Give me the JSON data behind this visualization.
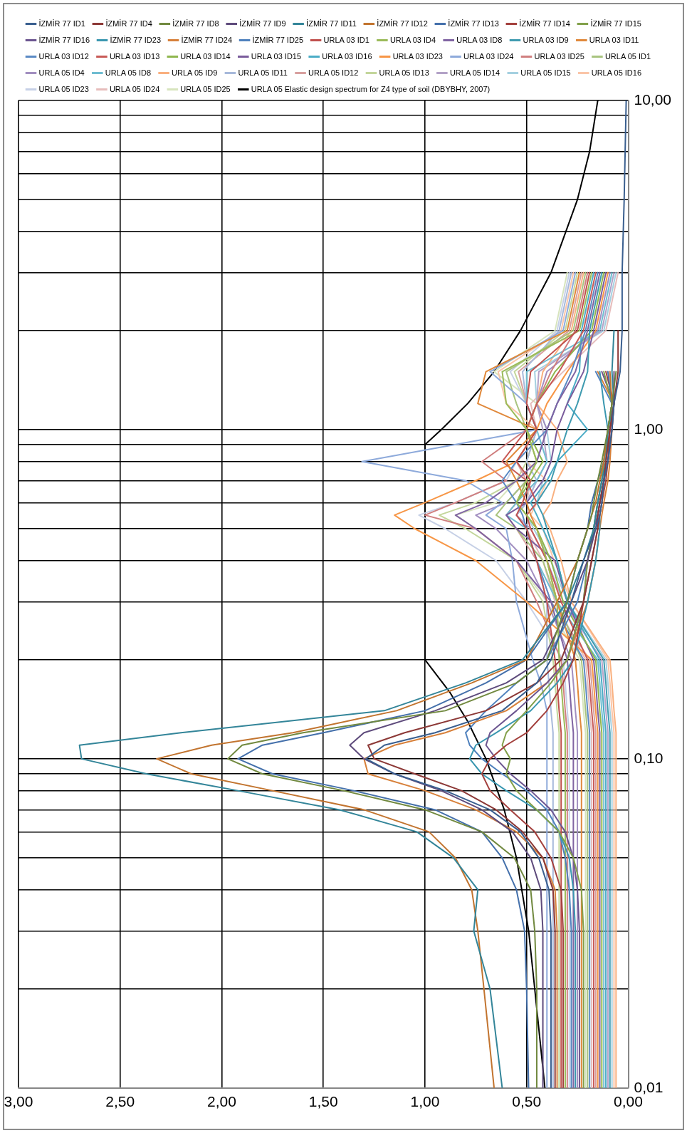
{
  "chart_data": {
    "type": "line",
    "orientation": "horizontal",
    "log": "y",
    "grid": true,
    "legend": "top",
    "marker": "none",
    "line_style": "solid",
    "x": [
      0.01,
      0.02,
      0.03,
      0.04,
      0.05,
      0.06,
      0.07,
      0.08,
      0.09,
      0.1,
      0.11,
      0.12,
      0.14,
      0.17,
      0.2,
      0.3,
      0.4,
      0.5,
      0.55,
      0.6,
      0.7,
      0.8,
      1,
      1.2,
      1.5,
      2,
      3,
      5,
      10
    ],
    "ylim": [
      0.01,
      10
    ],
    "yticks": [
      {
        "value": 0.01,
        "label": "0,01"
      },
      {
        "value": 0.02,
        "label": null
      },
      {
        "value": 0.03,
        "label": null
      },
      {
        "value": 0.04,
        "label": null
      },
      {
        "value": 0.05,
        "label": null
      },
      {
        "value": 0.06,
        "label": null
      },
      {
        "value": 0.07,
        "label": null
      },
      {
        "value": 0.08,
        "label": null
      },
      {
        "value": 0.09,
        "label": null
      },
      {
        "value": 0.1,
        "label": "0,10"
      },
      {
        "value": 0.2,
        "label": null
      },
      {
        "value": 0.3,
        "label": null
      },
      {
        "value": 0.4,
        "label": null
      },
      {
        "value": 0.5,
        "label": null
      },
      {
        "value": 0.6,
        "label": null
      },
      {
        "value": 0.7,
        "label": null
      },
      {
        "value": 0.8,
        "label": null
      },
      {
        "value": 0.9,
        "label": null
      },
      {
        "value": 1,
        "label": "1,00"
      },
      {
        "value": 2,
        "label": null
      },
      {
        "value": 3,
        "label": null
      },
      {
        "value": 4,
        "label": null
      },
      {
        "value": 5,
        "label": null
      },
      {
        "value": 6,
        "label": null
      },
      {
        "value": 7,
        "label": null
      },
      {
        "value": 8,
        "label": null
      },
      {
        "value": 9,
        "label": null
      },
      {
        "value": 10,
        "label": "10,00"
      }
    ],
    "xlim": [
      3,
      0
    ],
    "xticks": [
      {
        "value": 0,
        "label": "0,00"
      },
      {
        "value": 0.5,
        "label": "0,50"
      },
      {
        "value": 1,
        "label": "1,00"
      },
      {
        "value": 1.5,
        "label": "1,50"
      },
      {
        "value": 2,
        "label": "2,00"
      },
      {
        "value": 2.5,
        "label": "2,50"
      },
      {
        "value": 3,
        "label": "3,00"
      }
    ],
    "series": [
      {
        "name": "İZMİR 77 ID1",
        "color": "#3a5f8f",
        "values": [
          0.38,
          0.38,
          0.38,
          0.39,
          0.44,
          0.53,
          0.68,
          0.9,
          1.15,
          1.29,
          1.2,
          0.95,
          0.62,
          0.45,
          0.38,
          0.28,
          0.22,
          0.16,
          0.14,
          0.13,
          0.12,
          0.1,
          0.08,
          0.07,
          0.04,
          0.03,
          0.03,
          0.02,
          0.01
        ]
      },
      {
        "name": "İZMİR 77 ID4",
        "color": "#8c3836",
        "values": [
          0.36,
          0.36,
          0.36,
          0.37,
          0.42,
          0.52,
          0.65,
          0.82,
          1.05,
          1.25,
          1.28,
          1.1,
          0.7,
          0.45,
          0.33,
          0.22,
          0.18,
          0.15,
          0.15,
          0.14,
          0.12,
          0.11,
          0.09,
          0.07,
          0.05,
          0.05,
          null,
          null,
          null
        ]
      },
      {
        "name": "İZMİR 77 ID8",
        "color": "#71893f",
        "values": [
          0.45,
          0.45,
          0.46,
          0.48,
          0.56,
          0.72,
          1.0,
          1.4,
          1.8,
          1.97,
          1.9,
          1.6,
          0.9,
          0.55,
          0.4,
          0.3,
          0.25,
          0.2,
          0.18,
          0.17,
          0.15,
          0.13,
          0.1,
          0.08,
          0.06,
          null,
          null,
          null,
          null
        ]
      },
      {
        "name": "İZMİR 77 ID9",
        "color": "#5e4b7c",
        "values": [
          0.42,
          0.42,
          0.42,
          0.43,
          0.48,
          0.57,
          0.72,
          0.92,
          1.15,
          1.3,
          1.37,
          1.3,
          0.95,
          0.6,
          0.42,
          0.28,
          0.2,
          0.16,
          0.15,
          0.14,
          0.12,
          0.1,
          0.08,
          0.07,
          0.07,
          null,
          null,
          null,
          null
        ]
      },
      {
        "name": "İZMİR 77 ID11",
        "color": "#338599",
        "values": [
          0.62,
          0.68,
          0.76,
          0.74,
          0.86,
          1.04,
          1.42,
          1.92,
          2.37,
          2.69,
          2.7,
          2.2,
          1.2,
          0.8,
          0.52,
          0.3,
          0.22,
          0.17,
          0.16,
          0.15,
          0.13,
          0.11,
          0.1,
          0.07,
          0.08,
          0.07,
          null,
          null,
          null
        ]
      },
      {
        "name": "İZMİR 77 ID12",
        "color": "#c2742f",
        "values": [
          0.66,
          0.71,
          0.74,
          0.77,
          0.85,
          0.98,
          1.3,
          1.75,
          2.15,
          2.32,
          2.05,
          1.65,
          1.14,
          0.77,
          0.5,
          0.35,
          0.25,
          0.2,
          0.18,
          0.16,
          0.14,
          0.12,
          0.1,
          0.08,
          0.09,
          null,
          null,
          null,
          null
        ]
      },
      {
        "name": "İZMİR 77 ID13",
        "color": "#4470ab",
        "values": [
          0.49,
          0.5,
          0.51,
          0.55,
          0.62,
          0.72,
          0.95,
          1.35,
          1.75,
          1.92,
          1.8,
          1.5,
          1.0,
          0.7,
          0.5,
          0.3,
          0.25,
          0.2,
          0.19,
          0.18,
          0.15,
          0.12,
          0.1,
          0.08,
          0.1,
          null,
          null,
          null,
          null
        ]
      },
      {
        "name": "İZMİR 77 ID14",
        "color": "#a3403d",
        "values": [
          0.32,
          0.32,
          0.32,
          0.33,
          0.38,
          0.46,
          0.58,
          0.68,
          0.72,
          0.68,
          0.6,
          0.5,
          0.4,
          0.32,
          0.27,
          0.22,
          0.18,
          0.15,
          0.14,
          0.13,
          0.11,
          0.1,
          0.09,
          0.07,
          0.11,
          null,
          null,
          null,
          null
        ]
      },
      {
        "name": "İZMİR 77 ID15",
        "color": "#82a04a",
        "values": [
          0.22,
          0.22,
          0.22,
          0.23,
          0.27,
          0.34,
          0.45,
          0.55,
          0.6,
          0.58,
          0.62,
          0.6,
          0.5,
          0.38,
          0.3,
          0.22,
          0.2,
          0.17,
          0.16,
          0.15,
          0.13,
          0.12,
          0.1,
          0.08,
          0.12,
          null,
          null,
          null,
          null
        ]
      },
      {
        "name": "İZMİR 77 ID16",
        "color": "#6c5590",
        "values": [
          0.24,
          0.24,
          0.24,
          0.25,
          0.27,
          0.31,
          0.38,
          0.48,
          0.58,
          0.65,
          0.7,
          0.68,
          0.55,
          0.4,
          0.3,
          0.22,
          0.2,
          0.17,
          0.15,
          0.14,
          0.12,
          0.11,
          0.09,
          0.07,
          0.13,
          null,
          null,
          null,
          null
        ]
      },
      {
        "name": "İZMİR 77 ID23",
        "color": "#3a97b0",
        "values": [
          0.26,
          0.26,
          0.26,
          0.27,
          0.29,
          0.34,
          0.45,
          0.6,
          0.72,
          0.78,
          0.75,
          0.65,
          0.48,
          0.35,
          0.27,
          0.2,
          0.16,
          0.14,
          0.14,
          0.13,
          0.12,
          0.11,
          0.1,
          0.12,
          0.14,
          null,
          null,
          null,
          null
        ]
      },
      {
        "name": "İZMİR 77 ID24",
        "color": "#d7803a",
        "values": [
          0.35,
          0.35,
          0.35,
          0.36,
          0.42,
          0.55,
          0.75,
          1.0,
          1.28,
          1.3,
          1.15,
          0.9,
          0.6,
          0.4,
          0.3,
          0.2,
          0.16,
          0.14,
          0.13,
          0.12,
          0.1,
          0.09,
          0.08,
          0.07,
          0.15,
          null,
          null,
          null,
          null
        ]
      },
      {
        "name": "İZMİR 77 ID25",
        "color": "#4f81bd",
        "values": [
          0.28,
          0.28,
          0.28,
          0.29,
          0.31,
          0.34,
          0.4,
          0.5,
          0.62,
          0.72,
          0.78,
          0.8,
          0.7,
          0.55,
          0.4,
          0.25,
          0.2,
          0.17,
          0.16,
          0.15,
          0.13,
          0.12,
          0.1,
          0.08,
          0.16,
          null,
          null,
          null,
          null
        ]
      },
      {
        "name": "URLA 03 ID1",
        "color": "#c0504d",
        "values": [
          0.33,
          0.33,
          0.33,
          0.33,
          0.33,
          0.33,
          0.33,
          0.33,
          0.33,
          0.33,
          0.33,
          0.33,
          0.34,
          0.35,
          0.36,
          0.4,
          0.45,
          0.5,
          0.55,
          0.52,
          0.48,
          0.55,
          0.45,
          0.5,
          0.48,
          0.25,
          0.19,
          null,
          null
        ]
      },
      {
        "name": "URLA 03 ID4",
        "color": "#9bbb59",
        "values": [
          0.31,
          0.31,
          0.31,
          0.31,
          0.31,
          0.31,
          0.31,
          0.31,
          0.31,
          0.31,
          0.31,
          0.31,
          0.32,
          0.33,
          0.34,
          0.35,
          0.4,
          0.45,
          0.5,
          0.55,
          0.5,
          0.45,
          0.5,
          0.6,
          0.62,
          0.24,
          0.18,
          null,
          null
        ]
      },
      {
        "name": "URLA 03 ID8",
        "color": "#8064a2",
        "values": [
          0.27,
          0.27,
          0.27,
          0.27,
          0.27,
          0.27,
          0.27,
          0.27,
          0.27,
          0.27,
          0.27,
          0.27,
          0.28,
          0.29,
          0.3,
          0.38,
          0.55,
          0.75,
          0.85,
          0.7,
          0.55,
          0.45,
          0.4,
          0.35,
          0.26,
          0.2,
          0.14,
          null,
          null
        ]
      },
      {
        "name": "URLA 03 ID9",
        "color": "#3f9bb0",
        "values": [
          0.09,
          0.09,
          0.09,
          0.09,
          0.09,
          0.09,
          0.09,
          0.09,
          0.09,
          0.09,
          0.09,
          0.09,
          0.1,
          0.11,
          0.12,
          0.3,
          0.35,
          0.4,
          0.42,
          0.45,
          0.38,
          0.35,
          0.3,
          0.25,
          0.2,
          0.19,
          0.13,
          null,
          null
        ]
      },
      {
        "name": "URLA 03 ID11",
        "color": "#e0883a",
        "values": [
          0.23,
          0.23,
          0.23,
          0.23,
          0.23,
          0.23,
          0.23,
          0.23,
          0.23,
          0.23,
          0.23,
          0.23,
          0.24,
          0.25,
          0.26,
          0.35,
          0.4,
          0.45,
          0.48,
          0.5,
          0.55,
          0.6,
          0.45,
          0.74,
          0.7,
          0.3,
          0.24,
          null,
          null
        ]
      },
      {
        "name": "URLA 03 ID12",
        "color": "#5b8ac4",
        "values": [
          0.19,
          0.19,
          0.19,
          0.19,
          0.19,
          0.19,
          0.19,
          0.19,
          0.19,
          0.19,
          0.19,
          0.19,
          0.2,
          0.21,
          0.22,
          0.38,
          0.45,
          0.5,
          0.52,
          0.55,
          0.62,
          0.55,
          0.4,
          0.35,
          0.28,
          0.21,
          0.15,
          null,
          null
        ]
      },
      {
        "name": "URLA 03 ID13",
        "color": "#c85a57",
        "values": [
          0.17,
          0.17,
          0.17,
          0.17,
          0.17,
          0.17,
          0.17,
          0.17,
          0.17,
          0.17,
          0.17,
          0.17,
          0.18,
          0.19,
          0.2,
          0.33,
          0.4,
          0.48,
          0.5,
          0.45,
          0.5,
          0.62,
          0.5,
          0.45,
          0.34,
          0.22,
          0.16,
          null,
          null
        ]
      },
      {
        "name": "URLA 03 ID14",
        "color": "#8fb64e",
        "values": [
          0.13,
          0.13,
          0.13,
          0.13,
          0.13,
          0.13,
          0.13,
          0.13,
          0.13,
          0.13,
          0.13,
          0.13,
          0.14,
          0.15,
          0.16,
          0.32,
          0.38,
          0.45,
          0.5,
          0.55,
          0.48,
          0.42,
          0.5,
          0.45,
          0.36,
          0.18,
          0.12,
          null,
          null
        ]
      },
      {
        "name": "URLA 03 ID15",
        "color": "#7a5c9c",
        "values": [
          0.14,
          0.14,
          0.14,
          0.14,
          0.14,
          0.14,
          0.14,
          0.14,
          0.14,
          0.14,
          0.14,
          0.14,
          0.15,
          0.16,
          0.17,
          0.3,
          0.36,
          0.55,
          0.6,
          0.5,
          0.42,
          0.38,
          0.35,
          0.3,
          0.22,
          0.17,
          0.11,
          null,
          null
        ]
      },
      {
        "name": "URLA 03 ID16",
        "color": "#4bacc6",
        "values": [
          0.11,
          0.11,
          0.11,
          0.11,
          0.11,
          0.11,
          0.11,
          0.11,
          0.11,
          0.11,
          0.11,
          0.11,
          0.12,
          0.13,
          0.14,
          0.3,
          0.35,
          0.42,
          0.45,
          0.48,
          0.4,
          0.35,
          0.2,
          0.3,
          0.24,
          0.23,
          0.17,
          null,
          null
        ]
      },
      {
        "name": "URLA 03 ID23",
        "color": "#f79646",
        "values": [
          0.15,
          0.15,
          0.15,
          0.15,
          0.15,
          0.15,
          0.15,
          0.15,
          0.15,
          0.15,
          0.15,
          0.15,
          0.16,
          0.17,
          0.18,
          0.5,
          0.75,
          1.05,
          1.15,
          1.0,
          0.75,
          0.55,
          0.45,
          0.4,
          0.3,
          0.16,
          0.1,
          null,
          null
        ]
      },
      {
        "name": "URLA 03 ID24",
        "color": "#8eaadb",
        "values": [
          0.4,
          0.4,
          0.4,
          0.4,
          0.4,
          0.4,
          0.4,
          0.4,
          0.4,
          0.4,
          0.4,
          0.4,
          0.4,
          0.43,
          0.47,
          0.55,
          0.57,
          0.6,
          0.7,
          0.62,
          0.8,
          1.31,
          0.45,
          0.5,
          0.68,
          0.32,
          0.26,
          null,
          null
        ]
      },
      {
        "name": "URLA 03 ID25",
        "color": "#d07f7f",
        "values": [
          0.3,
          0.3,
          0.3,
          0.3,
          0.3,
          0.3,
          0.3,
          0.3,
          0.3,
          0.3,
          0.3,
          0.3,
          0.31,
          0.32,
          0.33,
          0.45,
          0.55,
          0.75,
          1.0,
          0.85,
          0.6,
          0.72,
          0.5,
          0.45,
          0.38,
          0.26,
          0.2,
          null,
          null
        ]
      },
      {
        "name": "URLA 05 ID1",
        "color": "#a9c47f",
        "values": [
          0.2,
          0.2,
          0.2,
          0.2,
          0.2,
          0.2,
          0.2,
          0.2,
          0.2,
          0.2,
          0.2,
          0.2,
          0.21,
          0.22,
          0.23,
          0.35,
          0.42,
          0.55,
          0.65,
          0.6,
          0.5,
          0.45,
          0.5,
          0.55,
          0.6,
          0.27,
          0.21,
          null,
          null
        ]
      },
      {
        "name": "URLA 05 ID4",
        "color": "#a28fc0",
        "values": [
          0.25,
          0.25,
          0.25,
          0.25,
          0.25,
          0.25,
          0.25,
          0.25,
          0.25,
          0.25,
          0.25,
          0.25,
          0.26,
          0.27,
          0.28,
          0.4,
          0.5,
          0.65,
          0.75,
          0.6,
          0.5,
          0.45,
          0.4,
          0.45,
          0.4,
          0.15,
          0.09,
          null,
          null
        ]
      },
      {
        "name": "URLA 05 ID8",
        "color": "#6fbdd1",
        "values": [
          0.12,
          0.12,
          0.12,
          0.12,
          0.12,
          0.12,
          0.12,
          0.12,
          0.12,
          0.12,
          0.12,
          0.12,
          0.13,
          0.14,
          0.15,
          0.35,
          0.45,
          0.5,
          0.6,
          0.55,
          0.45,
          0.4,
          0.45,
          0.5,
          0.5,
          0.14,
          0.08,
          null,
          null
        ]
      },
      {
        "name": "URLA 05 ID9",
        "color": "#f9b07f",
        "values": [
          0.06,
          0.06,
          0.06,
          0.06,
          0.06,
          0.06,
          0.06,
          0.06,
          0.06,
          0.06,
          0.06,
          0.06,
          0.07,
          0.08,
          0.09,
          0.28,
          0.33,
          0.385,
          0.42,
          0.38,
          0.35,
          0.3,
          0.35,
          0.45,
          0.42,
          0.28,
          0.22,
          null,
          null
        ]
      },
      {
        "name": "URLA 05 ID11",
        "color": "#a7b9db",
        "values": [
          0.37,
          0.37,
          0.37,
          0.37,
          0.37,
          0.37,
          0.37,
          0.37,
          0.37,
          0.37,
          0.37,
          0.37,
          0.38,
          0.39,
          0.4,
          0.4,
          0.45,
          0.5,
          0.55,
          0.5,
          0.45,
          0.5,
          0.45,
          0.5,
          0.52,
          0.34,
          0.28,
          null,
          null
        ]
      },
      {
        "name": "URLA 05 ID12",
        "color": "#d8a09f",
        "values": [
          0.16,
          0.16,
          0.16,
          0.16,
          0.16,
          0.16,
          0.16,
          0.16,
          0.16,
          0.16,
          0.16,
          0.16,
          0.17,
          0.18,
          0.19,
          0.38,
          0.45,
          0.55,
          0.6,
          0.55,
          0.5,
          0.55,
          0.45,
          0.5,
          0.54,
          0.29,
          0.23,
          null,
          null
        ]
      },
      {
        "name": "URLA 05 ID13",
        "color": "#c3d69b",
        "values": [
          0.34,
          0.34,
          0.34,
          0.34,
          0.34,
          0.34,
          0.34,
          0.34,
          0.34,
          0.34,
          0.34,
          0.34,
          0.35,
          0.36,
          0.37,
          0.42,
          0.55,
          0.8,
          0.93,
          0.75,
          0.55,
          0.5,
          0.45,
          0.5,
          0.56,
          0.31,
          0.25,
          null,
          null
        ]
      },
      {
        "name": "URLA 05 ID14",
        "color": "#b3a2c7",
        "values": [
          0.1,
          0.1,
          0.1,
          0.1,
          0.1,
          0.1,
          0.1,
          0.1,
          0.1,
          0.1,
          0.1,
          0.1,
          0.11,
          0.12,
          0.13,
          0.32,
          0.4,
          0.48,
          0.55,
          0.5,
          0.45,
          0.4,
          0.42,
          0.45,
          0.44,
          0.13,
          0.07,
          null,
          null
        ]
      },
      {
        "name": "URLA 05 ID15",
        "color": "#a5d0e0",
        "values": [
          0.08,
          0.08,
          0.08,
          0.08,
          0.08,
          0.08,
          0.08,
          0.08,
          0.08,
          0.08,
          0.08,
          0.08,
          0.09,
          0.1,
          0.11,
          0.3,
          0.38,
          0.465,
          0.5,
          0.45,
          0.42,
          0.38,
          0.4,
          0.45,
          0.46,
          0.12,
          0.06,
          null,
          null
        ]
      },
      {
        "name": "URLA 05 ID16",
        "color": "#fac5a8",
        "values": [
          0.07,
          0.07,
          0.07,
          0.07,
          0.07,
          0.07,
          0.07,
          0.07,
          0.07,
          0.07,
          0.07,
          0.07,
          0.08,
          0.09,
          0.1,
          0.28,
          0.365,
          0.42,
          0.48,
          0.45,
          0.4,
          0.5,
          0.45,
          0.6,
          0.64,
          0.33,
          0.27,
          null,
          null
        ]
      },
      {
        "name": "URLA 05 ID23",
        "color": "#c6d0e6",
        "values": [
          0.29,
          0.29,
          0.29,
          0.29,
          0.29,
          0.29,
          0.29,
          0.29,
          0.29,
          0.29,
          0.29,
          0.29,
          0.3,
          0.31,
          0.32,
          0.5,
          0.65,
          0.9,
          1.03,
          0.85,
          0.6,
          0.55,
          0.45,
          0.5,
          0.58,
          0.35,
          0.29,
          null,
          null
        ]
      },
      {
        "name": "URLA 05 ID24",
        "color": "#e6bcbb",
        "values": [
          0.18,
          0.18,
          0.18,
          0.18,
          0.18,
          0.18,
          0.18,
          0.18,
          0.18,
          0.18,
          0.18,
          0.18,
          0.19,
          0.2,
          0.21,
          0.36,
          0.42,
          0.5,
          0.55,
          0.5,
          0.48,
          0.55,
          0.45,
          0.48,
          0.32,
          0.11,
          0.05,
          null,
          null
        ]
      },
      {
        "name": "URLA 05 ID25",
        "color": "#d7e4bd",
        "values": [
          0.21,
          0.21,
          0.21,
          0.21,
          0.21,
          0.21,
          0.21,
          0.21,
          0.21,
          0.21,
          0.21,
          0.21,
          0.22,
          0.23,
          0.24,
          0.4,
          0.55,
          0.75,
          0.85,
          0.65,
          0.55,
          0.45,
          0.5,
          0.45,
          0.66,
          0.36,
          0.3,
          null,
          null
        ]
      },
      {
        "name": "URLA 05 Elastic design spectrum for Z4 type of soil (DBYBHY, 2007)",
        "color": "#000000",
        "x": [
          0.01,
          0.02,
          0.03,
          0.05,
          0.07,
          0.1,
          0.13,
          0.16,
          0.2,
          0.9,
          1,
          1.2,
          1.5,
          2,
          3,
          5,
          7,
          10
        ],
        "values": [
          0.41,
          0.46,
          0.49,
          0.55,
          0.61,
          0.7,
          0.79,
          0.88,
          1.0,
          1.0,
          0.92,
          0.79,
          0.66,
          0.53,
          0.38,
          0.25,
          0.19,
          0.15
        ]
      }
    ]
  }
}
